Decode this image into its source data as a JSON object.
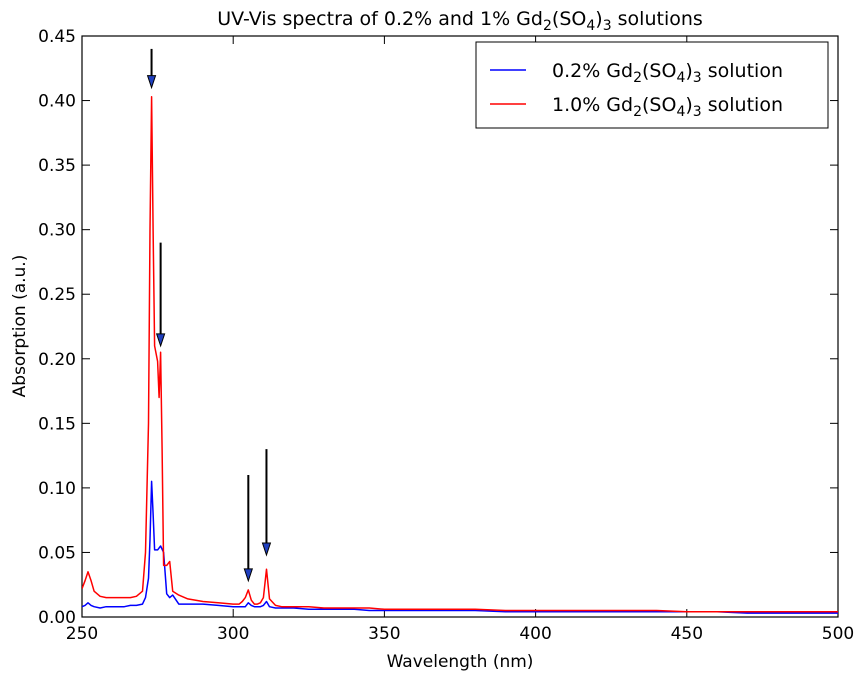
{
  "chart_data": {
    "type": "line",
    "title": "UV-Vis spectra of 0.2% and 1% Gd₂(SO₄)₃ solutions",
    "title_parts": {
      "pre": "UV-Vis spectra of 0.2% and 1% Gd",
      "s1": "2",
      "mid1": "(SO",
      "s2": "4",
      "mid2": ")",
      "s3": "3",
      "post": " solutions"
    },
    "xlabel": "Wavelength (nm)",
    "ylabel": "Absorption (a.u.)",
    "xlim": [
      250,
      500
    ],
    "ylim": [
      0,
      0.45
    ],
    "xticks": [
      250,
      300,
      350,
      400,
      450,
      500
    ],
    "xtick_labels": [
      "250",
      "300",
      "350",
      "400",
      "450",
      "500"
    ],
    "yticks": [
      0,
      0.05,
      0.1,
      0.15,
      0.2,
      0.25,
      0.3,
      0.35,
      0.4,
      0.45
    ],
    "ytick_labels": [
      "0.00",
      "0.05",
      "0.10",
      "0.15",
      "0.20",
      "0.25",
      "0.30",
      "0.35",
      "0.40",
      "0.45"
    ],
    "grid": false,
    "legend_position": "top-right",
    "series": [
      {
        "name": "0.2% Gd₂(SO₄)₃ solution",
        "label_parts": {
          "pre": "0.2% Gd",
          "s1": "2",
          "mid1": "(SO",
          "s2": "4",
          "mid2": ")",
          "s3": "3",
          "post": " solution"
        },
        "color": "#0000ff",
        "x": [
          250,
          251,
          252,
          253,
          254,
          256,
          258,
          260,
          262,
          264,
          266,
          268,
          270,
          271,
          272,
          272.5,
          273,
          273.5,
          274,
          275,
          276,
          277,
          278,
          279,
          280,
          282,
          285,
          290,
          295,
          300,
          302,
          303,
          304,
          305,
          306,
          307,
          308,
          309,
          310,
          311,
          312,
          314,
          316,
          320,
          325,
          330,
          335,
          340,
          345,
          350,
          360,
          370,
          380,
          390,
          400,
          410,
          420,
          430,
          440,
          450,
          460,
          470,
          480,
          490,
          500
        ],
        "y": [
          0.008,
          0.009,
          0.011,
          0.009,
          0.008,
          0.007,
          0.008,
          0.008,
          0.008,
          0.008,
          0.009,
          0.009,
          0.01,
          0.015,
          0.03,
          0.06,
          0.105,
          0.08,
          0.052,
          0.052,
          0.055,
          0.05,
          0.018,
          0.015,
          0.017,
          0.01,
          0.01,
          0.01,
          0.009,
          0.008,
          0.008,
          0.008,
          0.008,
          0.011,
          0.009,
          0.008,
          0.008,
          0.008,
          0.009,
          0.012,
          0.008,
          0.007,
          0.007,
          0.007,
          0.006,
          0.006,
          0.006,
          0.006,
          0.005,
          0.005,
          0.005,
          0.005,
          0.005,
          0.004,
          0.004,
          0.004,
          0.004,
          0.004,
          0.004,
          0.004,
          0.004,
          0.003,
          0.003,
          0.003,
          0.003
        ]
      },
      {
        "name": "1.0% Gd₂(SO₄)₃ solution",
        "label_parts": {
          "pre": "1.0% Gd",
          "s1": "2",
          "mid1": "(SO",
          "s2": "4",
          "mid2": ")",
          "s3": "3",
          "post": " solution"
        },
        "color": "#ff0000",
        "x": [
          250,
          251,
          252,
          253,
          254,
          256,
          258,
          260,
          262,
          264,
          266,
          268,
          270,
          271,
          272,
          272.5,
          273,
          273.5,
          274,
          275,
          275.5,
          276,
          276.5,
          277,
          278,
          279,
          280,
          282,
          285,
          290,
          295,
          300,
          302,
          303,
          304,
          305,
          306,
          307,
          308,
          309,
          310,
          311,
          312,
          314,
          316,
          320,
          325,
          330,
          335,
          340,
          345,
          350,
          360,
          370,
          380,
          390,
          400,
          410,
          420,
          430,
          440,
          450,
          460,
          470,
          480,
          490,
          500
        ],
        "y": [
          0.022,
          0.028,
          0.035,
          0.028,
          0.02,
          0.016,
          0.015,
          0.015,
          0.015,
          0.015,
          0.015,
          0.016,
          0.02,
          0.05,
          0.15,
          0.3,
          0.403,
          0.3,
          0.21,
          0.198,
          0.17,
          0.205,
          0.13,
          0.04,
          0.04,
          0.043,
          0.02,
          0.017,
          0.014,
          0.012,
          0.011,
          0.01,
          0.01,
          0.012,
          0.015,
          0.021,
          0.013,
          0.01,
          0.01,
          0.011,
          0.015,
          0.037,
          0.014,
          0.009,
          0.008,
          0.008,
          0.008,
          0.007,
          0.007,
          0.007,
          0.007,
          0.006,
          0.006,
          0.006,
          0.006,
          0.005,
          0.005,
          0.005,
          0.005,
          0.005,
          0.005,
          0.004,
          0.004,
          0.004,
          0.004,
          0.004,
          0.004
        ]
      }
    ],
    "annotations": [
      {
        "type": "arrow",
        "x": 273,
        "y_from": 0.44,
        "y_to": 0.41,
        "color": "#000000"
      },
      {
        "type": "arrow",
        "x": 276,
        "y_from": 0.29,
        "y_to": 0.21,
        "color": "#000000"
      },
      {
        "type": "arrow",
        "x": 305,
        "y_from": 0.11,
        "y_to": 0.028,
        "color": "#000000"
      },
      {
        "type": "arrow",
        "x": 311,
        "y_from": 0.13,
        "y_to": 0.048,
        "color": "#000000"
      }
    ]
  }
}
